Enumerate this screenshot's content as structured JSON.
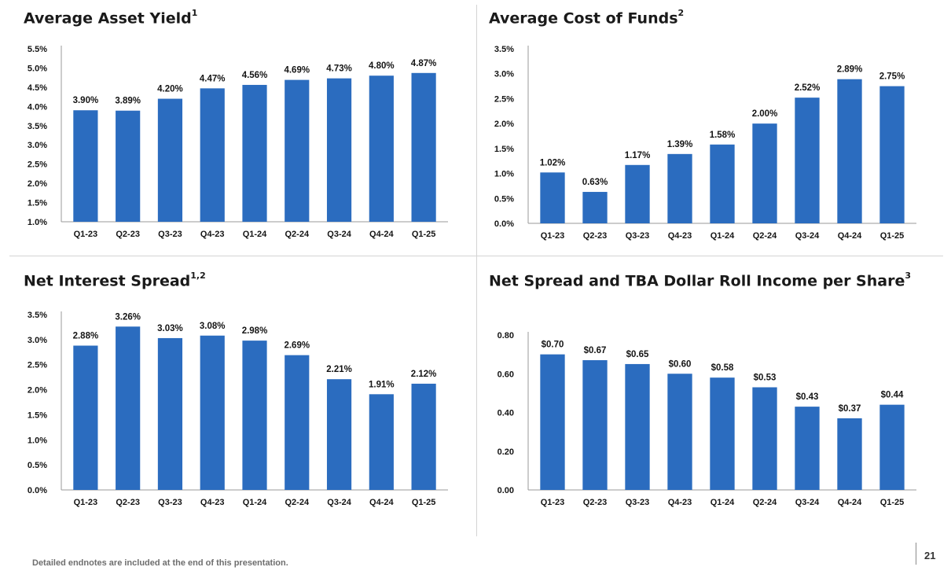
{
  "colors": {
    "bar": "#2b6cbf",
    "axis": "#9a9a9a",
    "text": "#141414"
  },
  "footnote": "Detailed endnotes are included at the end of this presentation.",
  "page_number": "21",
  "chart_data": [
    {
      "type": "bar",
      "title": "Average Asset Yield",
      "title_sup": "1",
      "categories": [
        "Q1-23",
        "Q2-23",
        "Q3-23",
        "Q4-23",
        "Q1-24",
        "Q2-24",
        "Q3-24",
        "Q4-24",
        "Q1-25"
      ],
      "values": [
        3.9,
        3.89,
        4.2,
        4.47,
        4.56,
        4.69,
        4.73,
        4.8,
        4.87
      ],
      "labels": [
        "3.90%",
        "3.89%",
        "4.20%",
        "4.47%",
        "4.56%",
        "4.69%",
        "4.73%",
        "4.80%",
        "4.87%"
      ],
      "ylim": [
        1.0,
        5.5
      ],
      "yticks": [
        1.0,
        1.5,
        2.0,
        2.5,
        3.0,
        3.5,
        4.0,
        4.5,
        5.0,
        5.5
      ],
      "ytick_labels": [
        "1.0%",
        "1.5%",
        "2.0%",
        "2.5%",
        "3.0%",
        "3.5%",
        "4.0%",
        "4.5%",
        "5.0%",
        "5.5%"
      ],
      "xlabel": "",
      "ylabel": ""
    },
    {
      "type": "bar",
      "title": "Average Cost of Funds",
      "title_sup": "2",
      "categories": [
        "Q1-23",
        "Q2-23",
        "Q3-23",
        "Q4-23",
        "Q1-24",
        "Q2-24",
        "Q3-24",
        "Q4-24",
        "Q1-25"
      ],
      "values": [
        1.02,
        0.63,
        1.17,
        1.39,
        1.58,
        2.0,
        2.52,
        2.89,
        2.75
      ],
      "labels": [
        "1.02%",
        "0.63%",
        "1.17%",
        "1.39%",
        "1.58%",
        "2.00%",
        "2.52%",
        "2.89%",
        "2.75%"
      ],
      "ylim": [
        0.0,
        3.5
      ],
      "yticks": [
        0.0,
        0.5,
        1.0,
        1.5,
        2.0,
        2.5,
        3.0,
        3.5
      ],
      "ytick_labels": [
        "0.0%",
        "0.5%",
        "1.0%",
        "1.5%",
        "2.0%",
        "2.5%",
        "3.0%",
        "3.5%"
      ],
      "xlabel": "",
      "ylabel": ""
    },
    {
      "type": "bar",
      "title": "Net Interest Spread",
      "title_sup": "1,2",
      "categories": [
        "Q1-23",
        "Q2-23",
        "Q3-23",
        "Q4-23",
        "Q1-24",
        "Q2-24",
        "Q3-24",
        "Q4-24",
        "Q1-25"
      ],
      "values": [
        2.88,
        3.26,
        3.03,
        3.08,
        2.98,
        2.69,
        2.21,
        1.91,
        2.12
      ],
      "labels": [
        "2.88%",
        "3.26%",
        "3.03%",
        "3.08%",
        "2.98%",
        "2.69%",
        "2.21%",
        "1.91%",
        "2.12%"
      ],
      "ylim": [
        0.0,
        3.5
      ],
      "yticks": [
        0.0,
        0.5,
        1.0,
        1.5,
        2.0,
        2.5,
        3.0,
        3.5
      ],
      "ytick_labels": [
        "0.0%",
        "0.5%",
        "1.0%",
        "1.5%",
        "2.0%",
        "2.5%",
        "3.0%",
        "3.5%"
      ],
      "xlabel": "",
      "ylabel": ""
    },
    {
      "type": "bar",
      "title": "Net Spread and TBA Dollar Roll Income per Share",
      "title_sup": "3",
      "categories": [
        "Q1-23",
        "Q2-23",
        "Q3-23",
        "Q4-23",
        "Q1-24",
        "Q2-24",
        "Q3-24",
        "Q4-24",
        "Q1-25"
      ],
      "values": [
        0.7,
        0.67,
        0.65,
        0.6,
        0.58,
        0.53,
        0.43,
        0.37,
        0.44
      ],
      "labels": [
        "$0.70",
        "$0.67",
        "$0.65",
        "$0.60",
        "$0.58",
        "$0.53",
        "$0.43",
        "$0.37",
        "$0.44"
      ],
      "ylim": [
        0.0,
        0.8
      ],
      "yticks": [
        0.0,
        0.2,
        0.4,
        0.6,
        0.8
      ],
      "ytick_labels": [
        "0.00",
        "0.20",
        "0.40",
        "0.60",
        "0.80"
      ],
      "xlabel": "",
      "ylabel": ""
    }
  ]
}
